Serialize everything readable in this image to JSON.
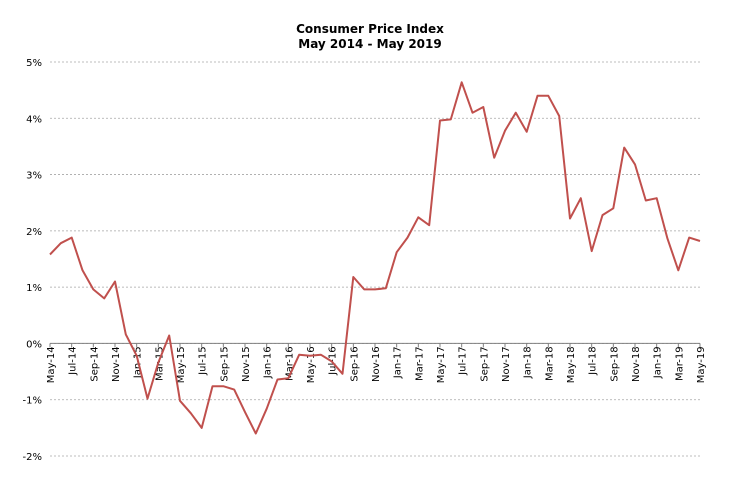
{
  "chart_data": {
    "type": "line",
    "title": "Consumer Price Index",
    "subtitle": "May 2014 - May 2019",
    "xlabel": "",
    "ylabel": "",
    "ylim": [
      -2,
      5
    ],
    "yticks": [
      "-2%",
      "-1%",
      "0%",
      "1%",
      "2%",
      "3%",
      "4%",
      "5%"
    ],
    "ytick_values": [
      -2,
      -1,
      0,
      1,
      2,
      3,
      4,
      5
    ],
    "grid": true,
    "legend": "none",
    "color": "#c0504d",
    "categories": [
      "May-14",
      "Jun-14",
      "Jul-14",
      "Aug-14",
      "Sep-14",
      "Oct-14",
      "Nov-14",
      "Dec-14",
      "Jan-15",
      "Feb-15",
      "Mar-15",
      "Apr-15",
      "May-15",
      "Jun-15",
      "Jul-15",
      "Aug-15",
      "Sep-15",
      "Oct-15",
      "Nov-15",
      "Dec-15",
      "Jan-16",
      "Feb-16",
      "Mar-16",
      "Apr-16",
      "May-16",
      "Jun-16",
      "Jul-16",
      "Aug-16",
      "Sep-16",
      "Oct-16",
      "Nov-16",
      "Dec-16",
      "Jan-17",
      "Feb-17",
      "Mar-17",
      "Apr-17",
      "May-17",
      "Jun-17",
      "Jul-17",
      "Aug-17",
      "Sep-17",
      "Oct-17",
      "Nov-17",
      "Dec-17",
      "Jan-18",
      "Feb-18",
      "Mar-18",
      "Apr-18",
      "May-18",
      "Jun-18",
      "Jul-18",
      "Aug-18",
      "Sep-18",
      "Oct-18",
      "Nov-18",
      "Dec-18",
      "Jan-19",
      "Feb-19",
      "Mar-19",
      "Apr-19",
      "May-19"
    ],
    "xtick_labels": [
      "May-14",
      "Jul-14",
      "Sep-14",
      "Nov-14",
      "Jan-15",
      "Mar-15",
      "May-15",
      "Jul-15",
      "Sep-15",
      "Nov-15",
      "Jan-16",
      "Mar-16",
      "May-16",
      "Jul-16",
      "Sep-16",
      "Nov-16",
      "Jan-17",
      "Mar-17",
      "May-17",
      "Jul-17",
      "Sep-17",
      "Nov-17",
      "Jan-18",
      "Mar-18",
      "May-18",
      "Jul-18",
      "Sep-18",
      "Nov-18",
      "Jan-19",
      "Mar-19",
      "May-19"
    ],
    "series": [
      {
        "values": [
          1.58,
          1.78,
          1.88,
          1.3,
          0.96,
          0.8,
          1.1,
          0.16,
          -0.22,
          -0.98,
          -0.34,
          0.14,
          -1.02,
          -1.24,
          -1.5,
          -0.76,
          -0.76,
          -0.82,
          -1.22,
          -1.6,
          -1.16,
          -0.64,
          -0.62,
          -0.2,
          -0.22,
          -0.2,
          -0.32,
          -0.54,
          1.18,
          0.96,
          0.96,
          0.98,
          1.62,
          1.88,
          2.24,
          2.1,
          3.96,
          3.98,
          4.64,
          4.1,
          4.2,
          3.3,
          3.78,
          4.1,
          3.76,
          4.4,
          4.4,
          4.04,
          2.22,
          2.58,
          1.64,
          2.28,
          2.4,
          3.48,
          3.18,
          2.54,
          2.58,
          1.86,
          1.3,
          1.88,
          1.82
        ]
      }
    ]
  }
}
